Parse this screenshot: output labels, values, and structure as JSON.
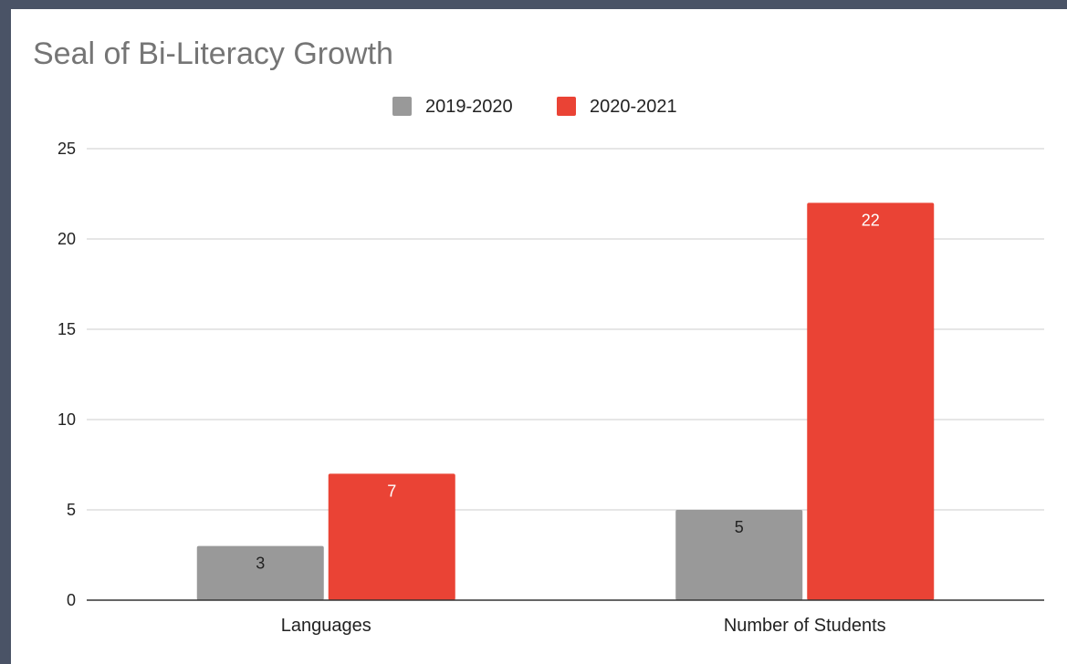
{
  "chart_data": {
    "type": "bar",
    "title": "Seal of Bi-Literacy Growth",
    "xlabel": "",
    "ylabel": "",
    "categories": [
      "Languages",
      "Number of Students"
    ],
    "series": [
      {
        "name": "2019-2020",
        "values": [
          3,
          5
        ],
        "color": "#999999",
        "label_color": "#222222"
      },
      {
        "name": "2020-2021",
        "values": [
          7,
          22
        ],
        "color": "#ea4335",
        "label_color": "#ffffff"
      }
    ],
    "ylim": [
      0,
      25
    ],
    "yticks": [
      0,
      5,
      10,
      15,
      20,
      25
    ],
    "grid": true,
    "legend_position": "top"
  }
}
